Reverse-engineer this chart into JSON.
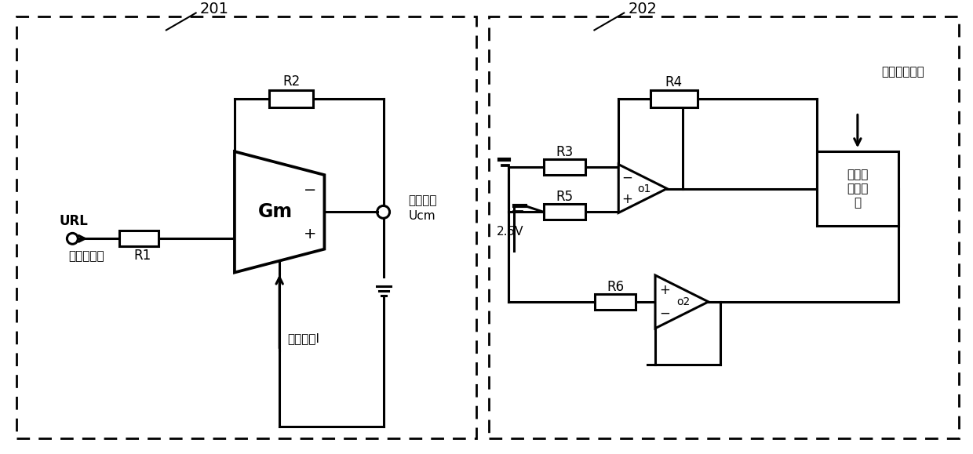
{
  "bg_color": "#ffffff",
  "line_color": "#000000",
  "label_201": "201",
  "label_202": "202",
  "label_R1": "R1",
  "label_R2": "R2",
  "label_R3": "R3",
  "label_R4": "R4",
  "label_R5": "R5",
  "label_R6": "R6",
  "label_Gm": "Gm",
  "label_URL": "URL",
  "label_feedback": "反馈至人体",
  "label_current": "调控电流I",
  "label_noise_1": "工频噪声",
  "label_noise_2": "Ucm",
  "label_25V": "2.5V",
  "label_O1": "o1",
  "label_O2": "o2",
  "label_selectable_1": "可选择",
  "label_selectable_2": "电阰电",
  "label_selectable_3": "路",
  "label_current_ctrl": "电流控制信号"
}
